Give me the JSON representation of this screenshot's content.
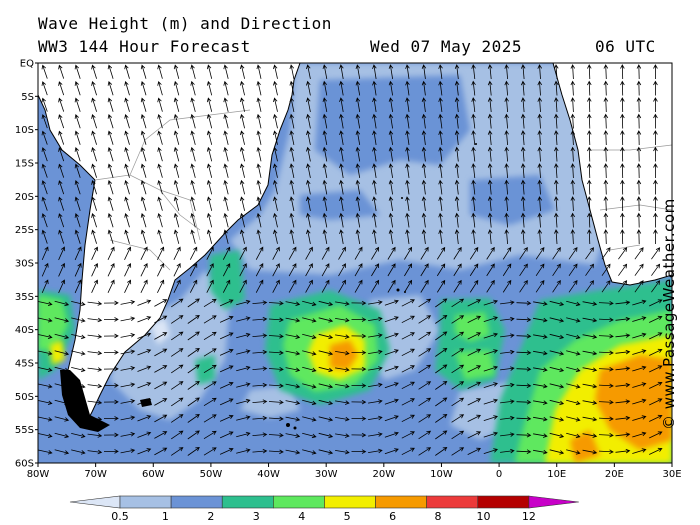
{
  "title": {
    "line1": "Wave Height (m) and Direction",
    "line2": "WW3 144 Hour Forecast",
    "datetime": "Wed 07 May 2025",
    "utc": "06 UTC"
  },
  "credit": "© www.PassageWeather.com",
  "map": {
    "lat_labels": [
      "EQ",
      "5S",
      "10S",
      "15S",
      "20S",
      "25S",
      "30S",
      "35S",
      "40S",
      "45S",
      "50S",
      "55S",
      "60S"
    ],
    "lon_labels": [
      "80W",
      "70W",
      "60W",
      "50W",
      "40W",
      "30W",
      "20W",
      "10W",
      "0",
      "10E",
      "20E",
      "30E"
    ],
    "colors": {
      "land": "#ffffff",
      "band_0_5_1": "#dce6f6",
      "band_1_2": "#a6c0e4",
      "band_2_3": "#6b93d6",
      "band_3_4": "#2dbf8e",
      "band_4_5": "#5ee85e",
      "band_5_6": "#f2ee00",
      "band_6_8": "#f69a00",
      "band_8_10": "#ec3a3a",
      "band_10_12": "#b40000",
      "band_12_plus": "#c800c8"
    }
  },
  "legend": {
    "labels": [
      "0.5",
      "1",
      "2",
      "3",
      "4",
      "5",
      "6",
      "8",
      "10",
      "12"
    ],
    "colors": [
      "#dce6f6",
      "#a6c0e4",
      "#6b93d6",
      "#2dbf8e",
      "#5ee85e",
      "#f2ee00",
      "#f69a00",
      "#ec3a3a",
      "#b40000",
      "#c800c8"
    ]
  }
}
